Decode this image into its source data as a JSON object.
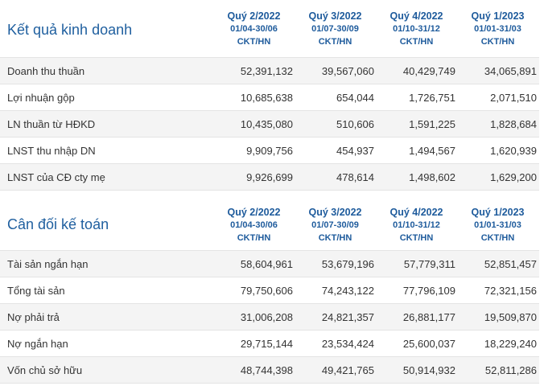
{
  "columns": [
    {
      "quarter": "Quý 2/2022",
      "range": "01/04-30/06",
      "unit": "CKT/HN"
    },
    {
      "quarter": "Quý 3/2022",
      "range": "01/07-30/09",
      "unit": "CKT/HN"
    },
    {
      "quarter": "Quý 4/2022",
      "range": "01/10-31/12",
      "unit": "CKT/HN"
    },
    {
      "quarter": "Quý 1/2023",
      "range": "01/01-31/03",
      "unit": "CKT/HN"
    }
  ],
  "business": {
    "title": "Kết quả kinh doanh",
    "rows": [
      {
        "label": "Doanh thu thuần",
        "values": [
          "52,391,132",
          "39,567,060",
          "40,429,749",
          "34,065,891"
        ]
      },
      {
        "label": "Lợi nhuận gộp",
        "values": [
          "10,685,638",
          "654,044",
          "1,726,751",
          "2,071,510"
        ]
      },
      {
        "label": "LN thuần từ HĐKD",
        "values": [
          "10,435,080",
          "510,606",
          "1,591,225",
          "1,828,684"
        ]
      },
      {
        "label": "LNST thu nhập DN",
        "values": [
          "9,909,756",
          "454,937",
          "1,494,567",
          "1,620,939"
        ]
      },
      {
        "label": "LNST của CĐ cty mẹ",
        "values": [
          "9,926,699",
          "478,614",
          "1,498,602",
          "1,629,200"
        ]
      }
    ]
  },
  "balance": {
    "title": "Cân đối kế toán",
    "rows": [
      {
        "label": "Tài sản ngắn hạn",
        "values": [
          "58,604,961",
          "53,679,196",
          "57,779,311",
          "52,851,457"
        ]
      },
      {
        "label": "Tổng tài sản",
        "values": [
          "79,750,606",
          "74,243,122",
          "77,796,109",
          "72,321,156"
        ]
      },
      {
        "label": "Nợ phải trả",
        "values": [
          "31,006,208",
          "24,821,357",
          "26,881,177",
          "19,509,870"
        ]
      },
      {
        "label": "Nợ ngắn hạn",
        "values": [
          "29,715,144",
          "23,534,424",
          "25,600,037",
          "18,229,240"
        ]
      },
      {
        "label": "Vốn chủ sở hữu",
        "values": [
          "48,744,398",
          "49,421,765",
          "50,914,932",
          "52,811,286"
        ]
      }
    ]
  }
}
